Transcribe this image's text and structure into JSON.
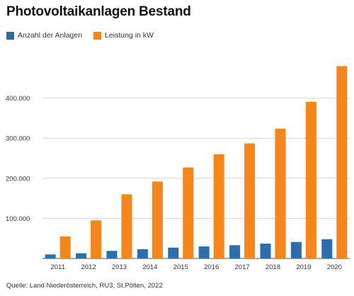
{
  "title": "Photovoltaikanlagen Bestand",
  "source": "Quelle: Land Niederösterreich, RU3, St.Pölten, 2022",
  "colors": {
    "count": "#2a6ead",
    "power": "#f7861a",
    "grid": "#d6d6d6",
    "axis": "#555555"
  },
  "chart_data": {
    "type": "bar",
    "categories": [
      "2011",
      "2012",
      "2013",
      "2014",
      "2015",
      "2016",
      "2017",
      "2018",
      "2019",
      "2020"
    ],
    "series": [
      {
        "name": "Anzahl der Anlagen",
        "values": [
          10000,
          13000,
          19000,
          23000,
          27000,
          30000,
          33000,
          37000,
          41000,
          48000
        ]
      },
      {
        "name": "Leistung in kW",
        "values": [
          55000,
          95000,
          160000,
          192000,
          227000,
          260000,
          287000,
          324000,
          391000,
          480000
        ]
      }
    ],
    "yticks": [
      "100.000",
      "200.000",
      "300.000",
      "400.000"
    ],
    "ylim": [
      0,
      500000
    ],
    "grid": true,
    "legend_position": "top-left"
  }
}
